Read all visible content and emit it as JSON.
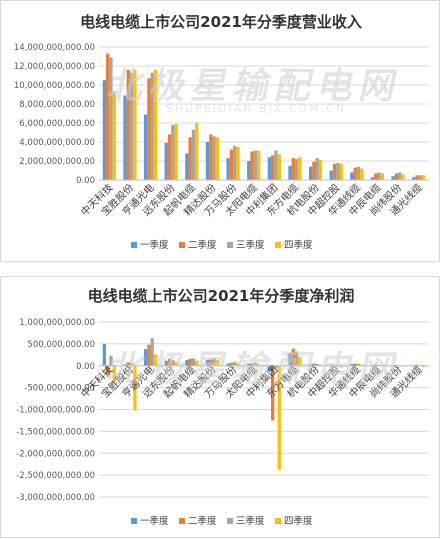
{
  "watermark": {
    "main": "北极星输配电网",
    "sub": "SHUPEIDIAN.BJX.COM.CN"
  },
  "chart_data": [
    {
      "type": "bar",
      "title": "电线电缆上市公司2021年分季度营业收入",
      "ylim": [
        0,
        14000000000
      ],
      "yticks": [
        "0.00",
        "2,000,000,000.00",
        "4,000,000,000.00",
        "6,000,000,000.00",
        "8,000,000,000.00",
        "10,000,000,000.00",
        "12,000,000,000.00",
        "14,000,000,000.00"
      ],
      "categories": [
        "中天科技",
        "宝胜股份",
        "亨通光电",
        "远东股份",
        "起帆电缆",
        "精达股份",
        "万马股份",
        "太阳电缆",
        "中利集团",
        "东方电缆",
        "杭电股份",
        "中超控股",
        "华通线缆",
        "中辰电缆",
        "尚纬股份",
        "通光线缆"
      ],
      "series": [
        {
          "name": "一季度",
          "color": "#5b9bd5",
          "values": [
            10500000000,
            8900000000,
            6900000000,
            3900000000,
            2800000000,
            4000000000,
            2300000000,
            2000000000,
            2400000000,
            1500000000,
            1400000000,
            1000000000,
            800000000,
            300000000,
            400000000,
            300000000
          ]
        },
        {
          "name": "二季度",
          "color": "#ed7d31",
          "values": [
            13300000000,
            11600000000,
            10700000000,
            4800000000,
            4500000000,
            4800000000,
            3200000000,
            3000000000,
            2600000000,
            2300000000,
            1900000000,
            1700000000,
            1300000000,
            700000000,
            700000000,
            500000000
          ]
        },
        {
          "name": "三季度",
          "color": "#a5a5a5",
          "values": [
            12900000000,
            11300000000,
            11300000000,
            5800000000,
            5300000000,
            4600000000,
            3600000000,
            3100000000,
            3100000000,
            2200000000,
            2300000000,
            1800000000,
            1400000000,
            800000000,
            800000000,
            500000000
          ]
        },
        {
          "name": "四季度",
          "color": "#ffc000",
          "values": [
            9300000000,
            11600000000,
            11600000000,
            5900000000,
            6000000000,
            4500000000,
            3500000000,
            3100000000,
            2700000000,
            2400000000,
            2100000000,
            1700000000,
            1200000000,
            700000000,
            600000000,
            500000000
          ]
        }
      ]
    },
    {
      "type": "bar",
      "title": "电线电缆上市公司2021年分季度净利润",
      "ylim": [
        -3000000000,
        1000000000
      ],
      "yticks": [
        "-3,000,000,000.00",
        "-2,500,000,000.00",
        "-2,000,000,000.00",
        "-1,500,000,000.00",
        "-1,000,000,000.00",
        "-500,000,000.00",
        "0.00",
        "500,000,000.00",
        "1,000,000,000.00"
      ],
      "categories": [
        "中天科技",
        "宝胜股份",
        "亨通光电",
        "远东股份",
        "起帆电缆",
        "精达股份",
        "万马股份",
        "太阳电缆",
        "中利集团",
        "东方电缆",
        "杭电股份",
        "中超控股",
        "华通线缆",
        "中辰电缆",
        "尚纬股份",
        "通光线缆"
      ],
      "series": [
        {
          "name": "一季度",
          "color": "#5b9bd5",
          "values": [
            500000000,
            30000000,
            380000000,
            110000000,
            130000000,
            130000000,
            50000000,
            50000000,
            -120000000,
            290000000,
            30000000,
            20000000,
            40000000,
            20000000,
            10000000,
            10000000
          ]
        },
        {
          "name": "二季度",
          "color": "#ed7d31",
          "values": [
            -200000000,
            80000000,
            480000000,
            160000000,
            160000000,
            150000000,
            70000000,
            60000000,
            -1250000000,
            390000000,
            50000000,
            20000000,
            50000000,
            30000000,
            20000000,
            20000000
          ]
        },
        {
          "name": "三季度",
          "color": "#a5a5a5",
          "values": [
            230000000,
            60000000,
            630000000,
            130000000,
            170000000,
            170000000,
            90000000,
            70000000,
            -60000000,
            320000000,
            40000000,
            20000000,
            40000000,
            20000000,
            10000000,
            10000000
          ]
        },
        {
          "name": "四季度",
          "color": "#ffc000",
          "values": [
            -350000000,
            -1020000000,
            260000000,
            90000000,
            120000000,
            130000000,
            60000000,
            40000000,
            -2380000000,
            200000000,
            30000000,
            -40000000,
            30000000,
            10000000,
            -20000000,
            -30000000
          ]
        }
      ]
    }
  ]
}
